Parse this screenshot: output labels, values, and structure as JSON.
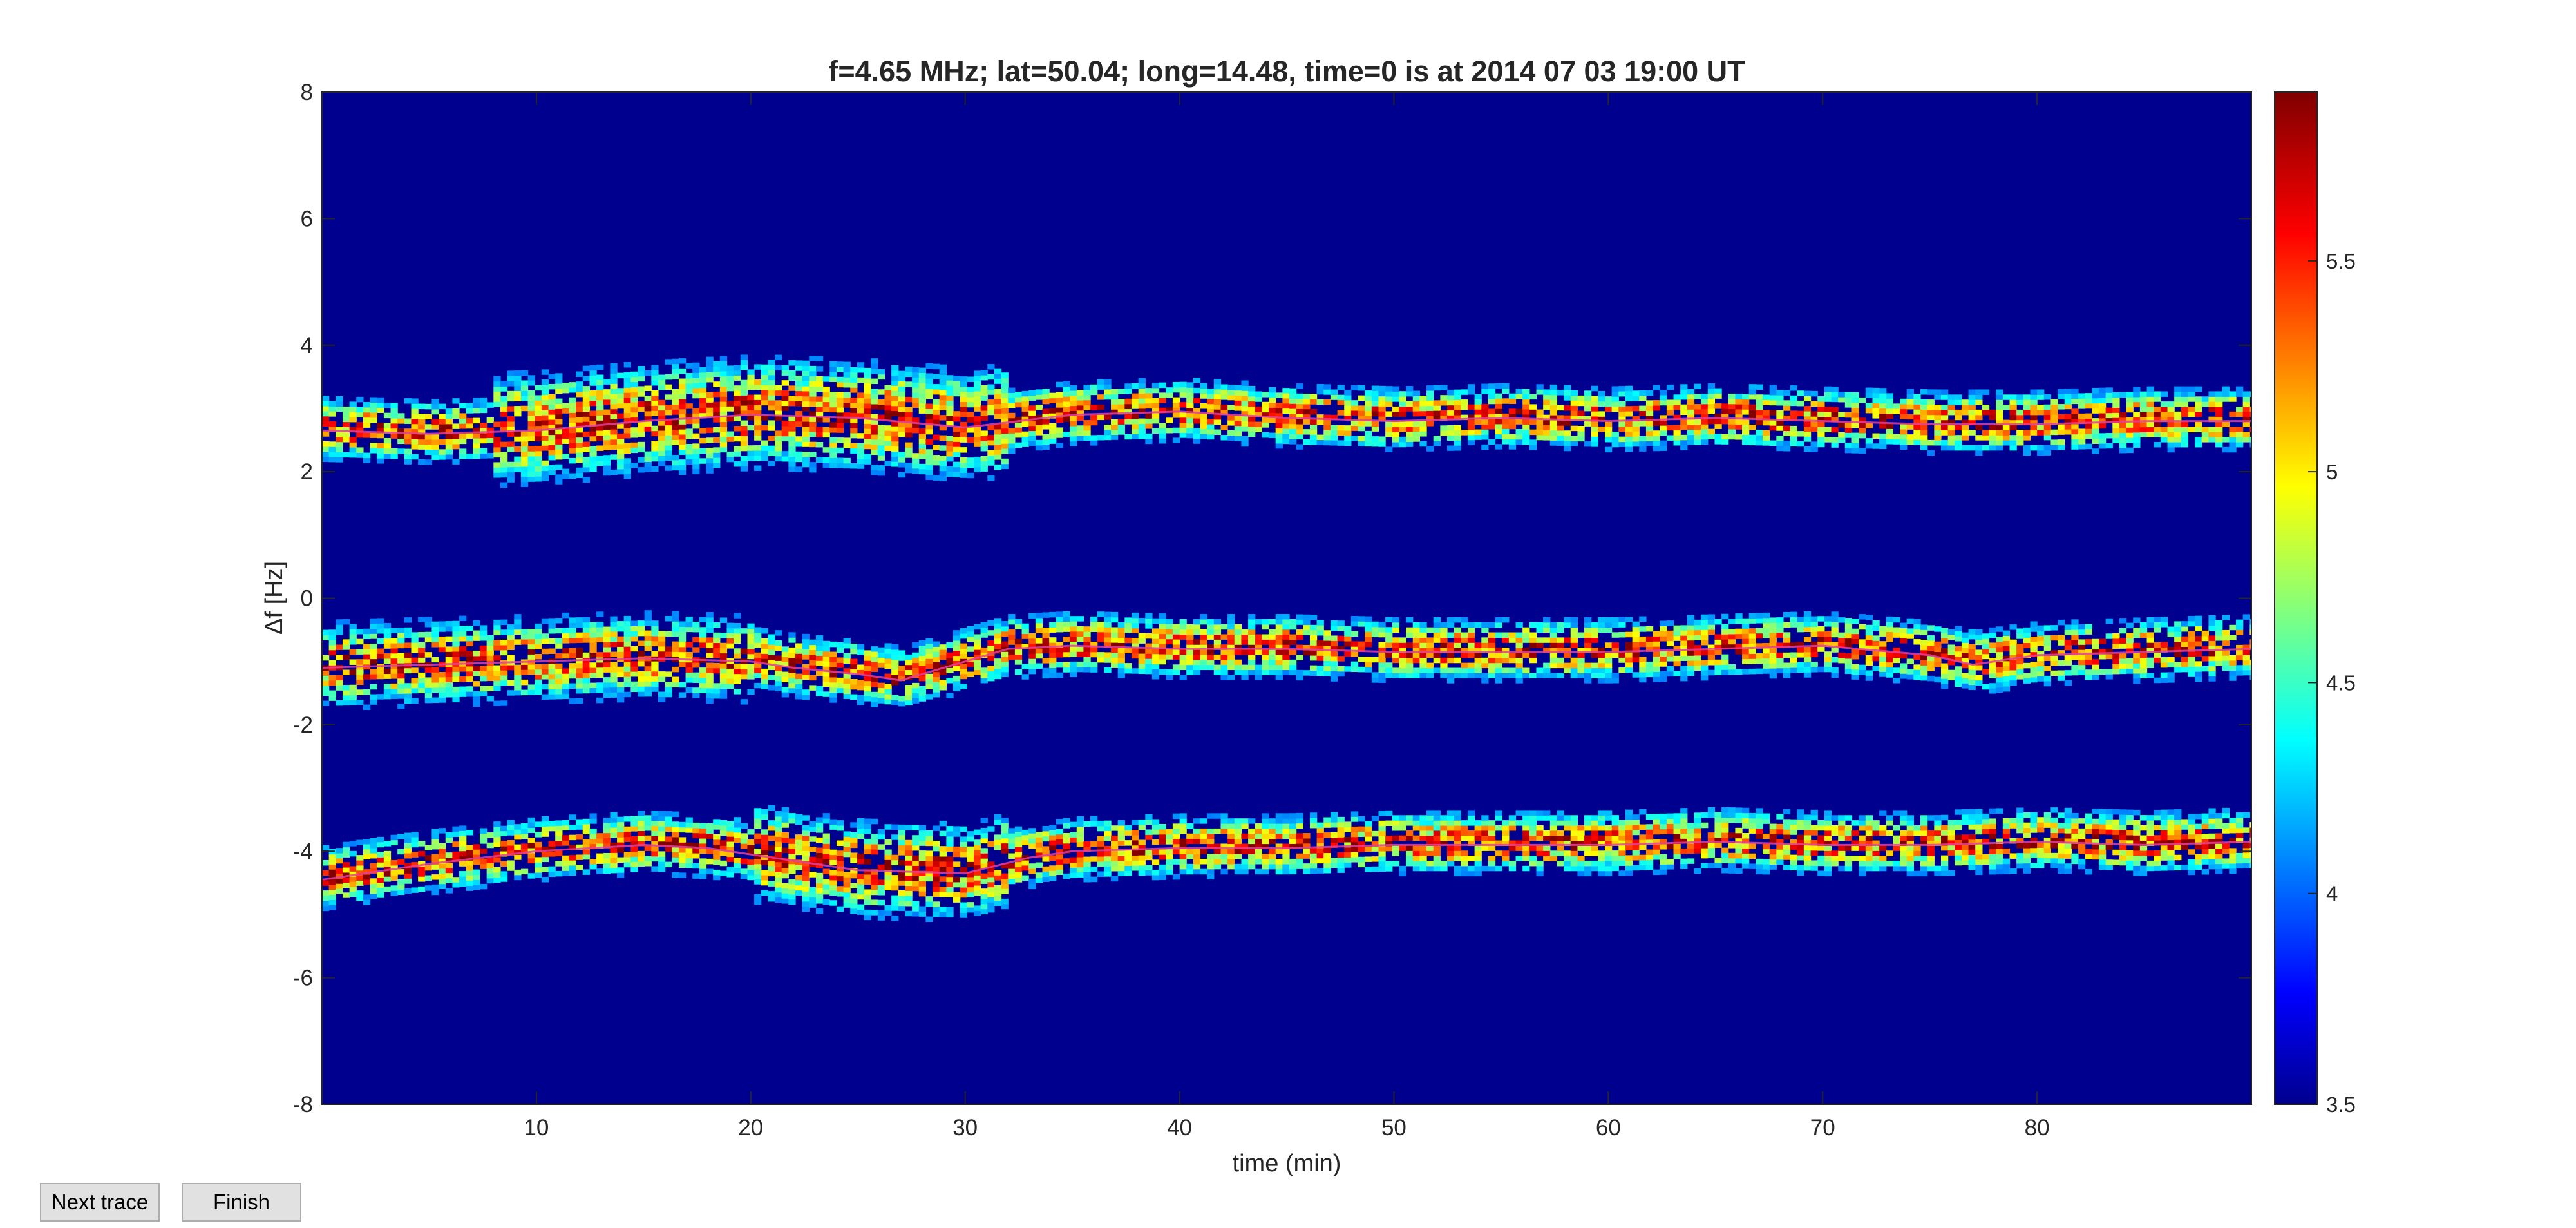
{
  "buttons": {
    "next_trace": "Next trace",
    "finish": "Finish"
  },
  "colors": {
    "background_low": "#00008f",
    "colormap": "jet",
    "trace_line": "#e040a0"
  },
  "chart_data": {
    "type": "heatmap",
    "title": "f=4.65 MHz;  lat=50.04; long=14.48, time=0 is at 2014 07 03 19:00 UT",
    "xlabel": "time (min)",
    "ylabel": "Δf [Hz]",
    "xlim": [
      0,
      90
    ],
    "ylim": [
      -8,
      8
    ],
    "xticks": [
      10,
      20,
      30,
      40,
      50,
      60,
      70,
      80
    ],
    "xtick_labels": [
      "10",
      "20",
      "30",
      "40",
      "50",
      "60",
      "70",
      "80"
    ],
    "yticks": [
      8,
      6,
      4,
      2,
      0,
      -2,
      -4,
      -6,
      -8
    ],
    "ytick_labels": [
      "8",
      "6",
      "4",
      "2",
      "0",
      "-2",
      "-4",
      "-6",
      "-8"
    ],
    "colorbar": {
      "range": [
        3.5,
        5.9
      ],
      "ticks": [
        5.5,
        5,
        4.5,
        4,
        3.5
      ],
      "tick_labels": [
        "5.5",
        "5",
        "4.5",
        "4",
        "3.5"
      ]
    },
    "grid": false,
    "traces": [
      {
        "band": "upper",
        "x": [
          0,
          5,
          10,
          15,
          20,
          25,
          30,
          35,
          40,
          45,
          50,
          55,
          60,
          65,
          70,
          75,
          80,
          85,
          90
        ],
        "y": [
          2.65,
          2.6,
          2.65,
          2.8,
          2.9,
          2.85,
          2.7,
          2.9,
          2.95,
          2.85,
          2.8,
          2.85,
          2.8,
          2.85,
          2.8,
          2.75,
          2.75,
          2.8,
          2.8
        ]
      },
      {
        "band": "middle",
        "x": [
          0,
          5,
          10,
          15,
          20,
          22,
          25,
          27,
          30,
          32,
          35,
          40,
          45,
          50,
          55,
          60,
          65,
          70,
          75,
          77,
          80,
          85,
          90
        ],
        "y": [
          -1.1,
          -1.05,
          -1.0,
          -0.95,
          -1.0,
          -1.1,
          -1.2,
          -1.3,
          -1.0,
          -0.8,
          -0.75,
          -0.8,
          -0.8,
          -0.85,
          -0.85,
          -0.85,
          -0.8,
          -0.75,
          -0.9,
          -1.05,
          -0.9,
          -0.85,
          -0.8
        ]
      },
      {
        "band": "lower",
        "x": [
          0,
          5,
          10,
          15,
          18,
          20,
          25,
          30,
          33,
          35,
          40,
          45,
          50,
          55,
          60,
          65,
          70,
          75,
          80,
          85,
          90
        ],
        "y": [
          -4.45,
          -4.2,
          -4.0,
          -3.9,
          -3.95,
          -4.05,
          -4.3,
          -4.35,
          -4.1,
          -4.0,
          -3.95,
          -3.95,
          -3.9,
          -3.9,
          -3.9,
          -3.85,
          -3.9,
          -3.9,
          -3.85,
          -3.9,
          -3.85
        ]
      }
    ]
  }
}
